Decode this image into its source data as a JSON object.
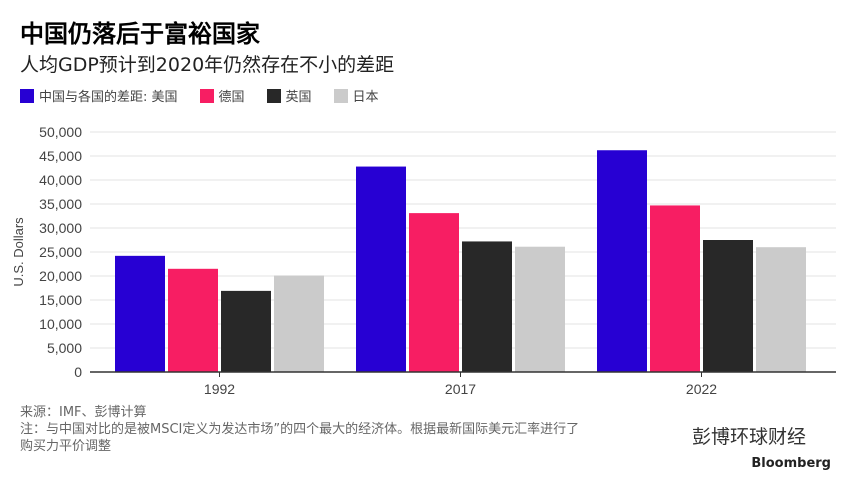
{
  "title": "中国仍落后于富裕国家",
  "subtitle": "人均GDP预计到2020年仍然存在不小的差距",
  "footer": {
    "source": "来源：IMF、彭博计算",
    "note": "注：与中国对比的是被MSCI定义为发达市场”的四个最大的经济体。根据最新国际美元汇率进行了",
    "note2": "购买力平价调整",
    "brand": "Bloomberg",
    "watermark": "彭博环球财经"
  },
  "chart_data": {
    "type": "bar",
    "categories": [
      "1992",
      "2017",
      "2022"
    ],
    "ylabel": "U.S. Dollars",
    "ylim": [
      0,
      50000
    ],
    "yticks": [
      "0",
      "5,000",
      "10,000",
      "15,000",
      "20,000",
      "25,000",
      "30,000",
      "35,000",
      "40,000",
      "45,000",
      "50,000"
    ],
    "grid": true,
    "legend_position": "top-left",
    "series": [
      {
        "name": "中国与各国的差距: 美国",
        "color": "#2700d3",
        "values": [
          24200,
          42800,
          46200
        ]
      },
      {
        "name": "德国",
        "color": "#f71e63",
        "values": [
          21500,
          33100,
          34700
        ]
      },
      {
        "name": "英国",
        "color": "#282828",
        "values": [
          16900,
          27200,
          27500
        ]
      },
      {
        "name": "日本",
        "color": "#cbcbcb",
        "values": [
          20100,
          26100,
          26000
        ]
      }
    ]
  }
}
